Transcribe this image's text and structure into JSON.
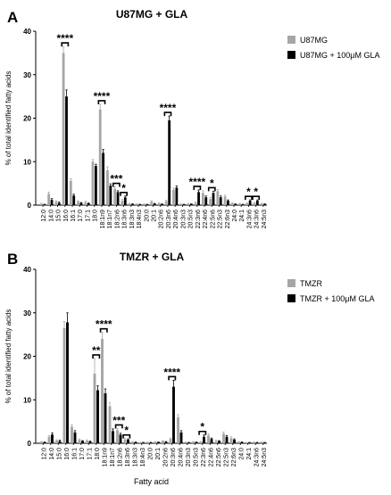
{
  "chart_data": [
    {
      "panel_letter": "A",
      "type": "bar",
      "title": "U87MG + GLA",
      "ylabel": "% of total identified fatty acids",
      "xlabel": "",
      "ylim": [
        0,
        40
      ],
      "yticks": [
        0,
        10,
        20,
        30,
        40
      ],
      "legend_position": "top-right",
      "grid": false,
      "categories": [
        "12:0",
        "14:0",
        "15:0",
        "16:0",
        "16:1",
        "17:0",
        "17:1",
        "18:0",
        "18:1n9",
        "18:1n7",
        "18:2n6",
        "18:3n6",
        "18:3n3",
        "18:4n3",
        "20:0",
        "20:1",
        "20:2n6",
        "20:3n6",
        "20:4n6",
        "20:3n3",
        "20:5n3",
        "22:3n6",
        "22:4n6",
        "22:5n6",
        "22:5n3",
        "22:6n3",
        "24:0",
        "24:1",
        "24:3n6",
        "24:3n6",
        "24:5n3"
      ],
      "series": [
        {
          "name": "U87MG",
          "color": "#a6a6a6",
          "values": [
            0.3,
            2.6,
            0.8,
            35.0,
            5.6,
            0.8,
            0.7,
            10.0,
            22.0,
            8.0,
            3.8,
            1.0,
            0.3,
            0.2,
            0.2,
            0.8,
            0.4,
            0.9,
            3.5,
            0.2,
            0.3,
            0.5,
            2.8,
            1.4,
            3.2,
            2.0,
            0.4,
            0.3,
            0.4,
            0.5,
            0.3
          ],
          "errors": [
            0.1,
            0.4,
            0.2,
            1.5,
            0.5,
            0.2,
            0.2,
            0.5,
            1.2,
            0.8,
            0.4,
            0.3,
            0.1,
            0.1,
            0.1,
            0.2,
            0.1,
            0.2,
            0.4,
            0.1,
            0.1,
            0.2,
            0.5,
            0.3,
            0.4,
            0.3,
            0.1,
            0.1,
            0.1,
            0.1,
            0.1
          ]
        },
        {
          "name": "U87MG + 100μM GLA",
          "color": "#000000",
          "values": [
            0.1,
            1.2,
            0.5,
            25.0,
            2.2,
            0.5,
            0.4,
            9.0,
            12.0,
            4.5,
            3.0,
            1.8,
            0.2,
            0.1,
            0.1,
            0.3,
            0.2,
            19.5,
            4.0,
            0.1,
            0.2,
            3.0,
            1.8,
            2.8,
            1.8,
            1.0,
            0.2,
            0.1,
            1.0,
            1.0,
            0.2
          ],
          "errors": [
            0.1,
            0.3,
            0.2,
            1.5,
            0.3,
            0.1,
            0.1,
            0.4,
            0.8,
            0.4,
            0.3,
            0.3,
            0.1,
            0.1,
            0.1,
            0.1,
            0.1,
            1.0,
            0.4,
            0.1,
            0.1,
            0.5,
            0.3,
            0.4,
            0.3,
            0.2,
            0.1,
            0.1,
            0.2,
            0.2,
            0.1
          ]
        }
      ],
      "significance": [
        {
          "label": "****",
          "from": 3,
          "to": 3
        },
        {
          "label": "****",
          "from": 8,
          "to": 8
        },
        {
          "label": "***",
          "from": 10,
          "to": 10
        },
        {
          "label": "*",
          "from": 11,
          "to": 11
        },
        {
          "label": "****",
          "from": 17,
          "to": 17
        },
        {
          "label": "****",
          "from": 21,
          "to": 21
        },
        {
          "label": "*",
          "from": 23,
          "to": 23
        },
        {
          "label": "*",
          "from": 28,
          "to": 28
        },
        {
          "label": "*",
          "from": 29,
          "to": 29
        }
      ]
    },
    {
      "panel_letter": "B",
      "type": "bar",
      "title": "TMZR + GLA",
      "ylabel": "% of total identified fatty acids",
      "xlabel": "Fatty acid",
      "ylim": [
        0,
        40
      ],
      "yticks": [
        0,
        10,
        20,
        30,
        40
      ],
      "legend_position": "top-right",
      "grid": false,
      "categories": [
        "12:0",
        "14:0",
        "15:0",
        "16:0",
        "16:1",
        "17:0",
        "17:1",
        "18:0",
        "18:1n9",
        "18:1n7",
        "18:2n6",
        "18:3n6",
        "18:3n3",
        "18:4n3",
        "20:0",
        "20:1",
        "20:2n6",
        "20:3n6",
        "20:4n6",
        "20:3n3",
        "20:5n3",
        "22:3n6",
        "22:4n6",
        "22:5n6",
        "22:5n3",
        "22:6n3",
        "24:0",
        "24:1",
        "24:3n6",
        "24:5n3"
      ],
      "series": [
        {
          "name": "TMZR",
          "color": "#a6a6a6",
          "values": [
            0.3,
            1.5,
            0.6,
            26.5,
            3.8,
            0.8,
            0.6,
            16.0,
            24.0,
            8.5,
            3.0,
            0.9,
            0.3,
            0.1,
            0.2,
            0.3,
            0.5,
            1.0,
            6.0,
            0.2,
            0.3,
            0.3,
            1.8,
            0.5,
            2.2,
            1.2,
            0.3,
            0.1,
            0.2,
            0.2
          ],
          "errors": [
            0.1,
            0.3,
            0.2,
            1.5,
            0.5,
            0.2,
            0.2,
            3.5,
            1.5,
            0.8,
            0.4,
            0.2,
            0.1,
            0.1,
            0.1,
            0.1,
            0.1,
            0.2,
            0.6,
            0.1,
            0.1,
            0.1,
            0.4,
            0.2,
            0.4,
            0.3,
            0.1,
            0.1,
            0.1,
            0.1
          ]
        },
        {
          "name": "TMZR + 100μM GLA",
          "color": "#000000",
          "values": [
            0.2,
            2.0,
            0.5,
            27.8,
            2.5,
            0.5,
            0.4,
            12.2,
            11.5,
            2.8,
            2.0,
            0.8,
            0.2,
            0.1,
            0.1,
            0.2,
            0.3,
            13.0,
            2.5,
            0.1,
            0.2,
            1.5,
            1.0,
            0.5,
            1.5,
            0.8,
            0.2,
            0.1,
            0.1,
            0.1
          ],
          "errors": [
            0.1,
            0.4,
            0.2,
            2.2,
            0.4,
            0.1,
            0.1,
            1.0,
            1.0,
            0.5,
            0.3,
            0.2,
            0.1,
            0.1,
            0.1,
            0.1,
            0.1,
            1.5,
            0.4,
            0.1,
            0.1,
            0.4,
            0.2,
            0.1,
            0.3,
            0.2,
            0.1,
            0.1,
            0.1,
            0.1
          ]
        }
      ],
      "significance": [
        {
          "label": "**",
          "from": 7,
          "to": 7
        },
        {
          "label": "****",
          "from": 8,
          "to": 8
        },
        {
          "label": "***",
          "from": 10,
          "to": 10
        },
        {
          "label": "*",
          "from": 11,
          "to": 11
        },
        {
          "label": "****",
          "from": 17,
          "to": 17
        },
        {
          "label": "*",
          "from": 21,
          "to": 21
        }
      ]
    }
  ]
}
